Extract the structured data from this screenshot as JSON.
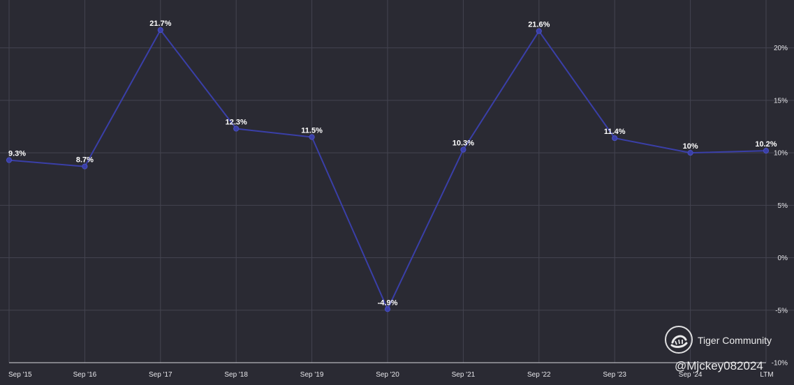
{
  "chart_data": {
    "type": "line",
    "categories": [
      "Sep '15",
      "Sep '16",
      "Sep '17",
      "Sep '18",
      "Sep '19",
      "Sep '20",
      "Sep '21",
      "Sep '22",
      "Sep '23",
      "Sep '24",
      "LTM"
    ],
    "series": [
      {
        "values": [
          9.3,
          8.7,
          21.7,
          12.3,
          11.5,
          -4.9,
          10.3,
          21.6,
          11.4,
          10.0,
          10.2
        ],
        "labels": [
          "9.3%",
          "8.7%",
          "21.7%",
          "12.3%",
          "11.5%",
          "-4.9%",
          "10.3%",
          "21.6%",
          "11.4%",
          "10%",
          "10.2%"
        ]
      }
    ],
    "ylim": [
      -10,
      23.5
    ],
    "yticks": [
      20,
      15,
      10,
      5,
      0,
      -5,
      -10
    ],
    "ytick_labels": [
      "20%",
      "15%",
      "10%",
      "5%",
      "0%",
      "-5%",
      "-10%"
    ],
    "grid": true,
    "line_color": "#3a3fa8",
    "background_color": "#2a2a33"
  },
  "watermark": {
    "brand": "Tiger Community",
    "user": "@Mjckey082024",
    "logo_icon": "tiger-logo-icon"
  }
}
